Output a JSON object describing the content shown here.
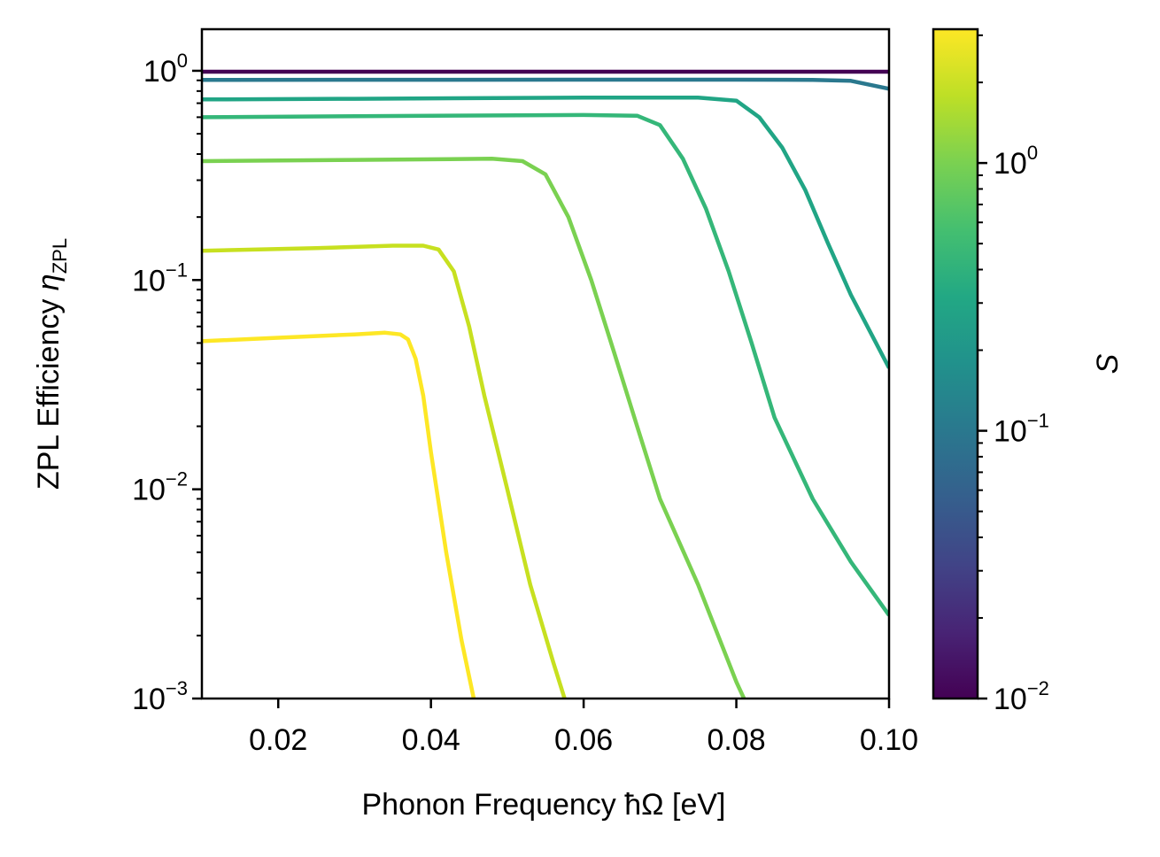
{
  "chart_data": {
    "type": "line",
    "xlabel": "Phonon Frequency ħΩ [eV]",
    "ylabel_prefix": "ZPL Efficiency ",
    "ylabel_symbol": "η",
    "ylabel_sub": "ZPL",
    "xlim": [
      0.01,
      0.1
    ],
    "ylim": [
      0.001,
      1.58
    ],
    "yscale": "log",
    "x_ticks": [
      0.02,
      0.04,
      0.06,
      0.08,
      0.1
    ],
    "x_tick_labels": [
      "0.02",
      "0.04",
      "0.06",
      "0.08",
      "0.10"
    ],
    "y_ticks": [
      {
        "value": 1,
        "base": "10",
        "exp": "0"
      },
      {
        "value": 0.1,
        "base": "10",
        "exp": "−1"
      },
      {
        "value": 0.01,
        "base": "10",
        "exp": "−2"
      },
      {
        "value": 0.001,
        "base": "10",
        "exp": "−3"
      }
    ],
    "colorbar": {
      "label": "S",
      "scale": "log",
      "range": [
        0.01,
        3.16
      ],
      "colormap": "viridis",
      "ticks": [
        {
          "value": 0.01,
          "base": "10",
          "exp": "−2"
        },
        {
          "value": 0.1,
          "base": "10",
          "exp": "−1"
        },
        {
          "value": 1,
          "base": "10",
          "exp": "0"
        }
      ]
    },
    "series": [
      {
        "name": "S=0.01",
        "color": "#440154",
        "x": [
          0.01,
          0.1
        ],
        "y": [
          0.99,
          0.99
        ]
      },
      {
        "name": "S=0.1",
        "color": "#2a788e",
        "x": [
          0.01,
          0.04,
          0.08,
          0.09,
          0.095,
          0.1
        ],
        "y": [
          0.905,
          0.906,
          0.907,
          0.905,
          0.895,
          0.82
        ]
      },
      {
        "name": "S=0.3",
        "color": "#21a585",
        "x": [
          0.01,
          0.03,
          0.06,
          0.075,
          0.08,
          0.083,
          0.086,
          0.089,
          0.092,
          0.095,
          0.1
        ],
        "y": [
          0.73,
          0.735,
          0.745,
          0.745,
          0.72,
          0.6,
          0.43,
          0.27,
          0.15,
          0.085,
          0.038
        ]
      },
      {
        "name": "S=0.5",
        "color": "#35b779",
        "x": [
          0.01,
          0.04,
          0.06,
          0.067,
          0.07,
          0.073,
          0.076,
          0.079,
          0.082,
          0.085,
          0.09,
          0.095,
          0.1
        ],
        "y": [
          0.6,
          0.61,
          0.615,
          0.61,
          0.55,
          0.38,
          0.22,
          0.11,
          0.05,
          0.022,
          0.009,
          0.0045,
          0.0025
        ]
      },
      {
        "name": "S=1",
        "color": "#7ad151",
        "x": [
          0.01,
          0.03,
          0.048,
          0.052,
          0.055,
          0.058,
          0.061,
          0.064,
          0.067,
          0.07,
          0.075,
          0.08,
          0.081
        ],
        "y": [
          0.37,
          0.375,
          0.38,
          0.37,
          0.32,
          0.2,
          0.1,
          0.045,
          0.02,
          0.009,
          0.0035,
          0.0012,
          0.001
        ]
      },
      {
        "name": "S=2",
        "color": "#c7e020",
        "x": [
          0.01,
          0.025,
          0.035,
          0.039,
          0.041,
          0.043,
          0.045,
          0.047,
          0.05,
          0.053,
          0.056,
          0.0575
        ],
        "y": [
          0.138,
          0.142,
          0.146,
          0.146,
          0.14,
          0.11,
          0.06,
          0.028,
          0.01,
          0.0035,
          0.0015,
          0.001
        ]
      },
      {
        "name": "S=3",
        "color": "#fde725",
        "x": [
          0.01,
          0.02,
          0.03,
          0.034,
          0.036,
          0.037,
          0.038,
          0.039,
          0.04,
          0.042,
          0.044,
          0.0456
        ],
        "y": [
          0.051,
          0.053,
          0.055,
          0.056,
          0.055,
          0.052,
          0.042,
          0.028,
          0.015,
          0.005,
          0.0019,
          0.001
        ]
      }
    ]
  }
}
